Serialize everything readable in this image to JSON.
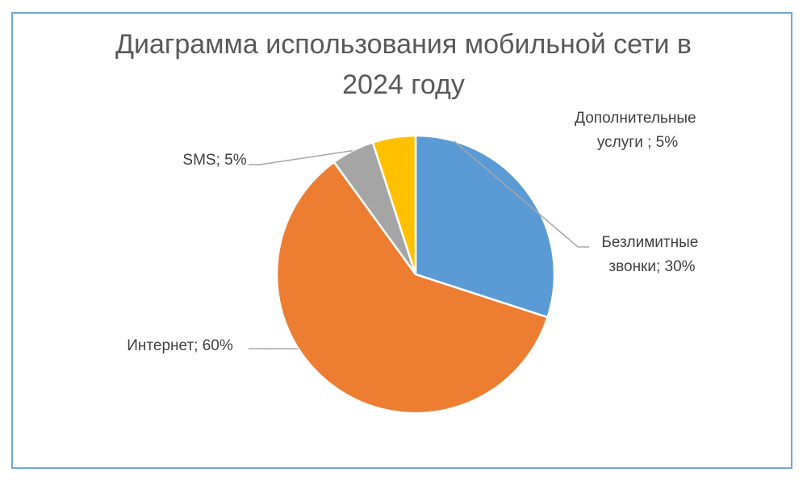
{
  "chart_data": {
    "type": "pie",
    "title_lines": [
      "Диаграмма использования мобильной сети в",
      "2024 году"
    ],
    "slices": [
      {
        "label_lines": [
          "Безлимитные",
          "звонки; 30%"
        ],
        "value": 30,
        "color": "#5b9bd5"
      },
      {
        "label_lines": [
          "Интернет; 60%"
        ],
        "value": 60,
        "color": "#ed7d31"
      },
      {
        "label_lines": [
          "SMS; 5%"
        ],
        "value": 5,
        "color": "#a5a5a5"
      },
      {
        "label_lines": [
          "Дополнительные",
          "услуги ; 5%"
        ],
        "value": 5,
        "color": "#ffc000"
      }
    ]
  }
}
